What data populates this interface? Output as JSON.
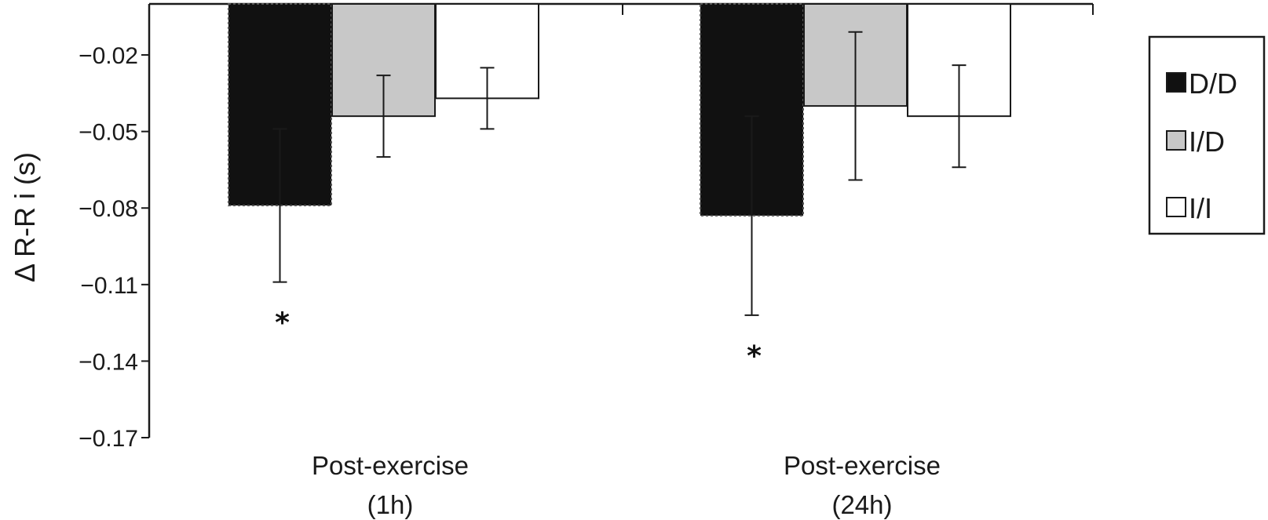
{
  "chart_data": {
    "type": "bar",
    "ylabel": "Δ R-R i (s)",
    "ylim": [
      -0.17,
      0
    ],
    "yticks": [
      -0.02,
      -0.05,
      -0.08,
      -0.11,
      -0.14,
      -0.17
    ],
    "ytick_labels": [
      "−0.02",
      "−0.05",
      "−0.08",
      "−0.11",
      "−0.14",
      "−0.17"
    ],
    "categories": [
      {
        "line1": "Post-exercise",
        "line2": "(1h)"
      },
      {
        "line1": "Post-exercise",
        "line2": "(24h)"
      }
    ],
    "series": [
      {
        "name": "D/D",
        "color": "#111111",
        "values": [
          -0.079,
          -0.083
        ],
        "errors": [
          0.03,
          0.039
        ]
      },
      {
        "name": "I/D",
        "color": "#c8c8c8",
        "values": [
          -0.044,
          -0.04
        ],
        "errors": [
          0.016,
          0.029
        ]
      },
      {
        "name": "I/I",
        "color": "#ffffff",
        "values": [
          -0.037,
          -0.044
        ],
        "errors": [
          0.012,
          0.02
        ]
      }
    ],
    "annotations": [
      {
        "category": 0,
        "series": 0,
        "text": "*"
      },
      {
        "category": 1,
        "series": 0,
        "text": "*"
      }
    ],
    "legend_position": "right",
    "grid": false
  }
}
